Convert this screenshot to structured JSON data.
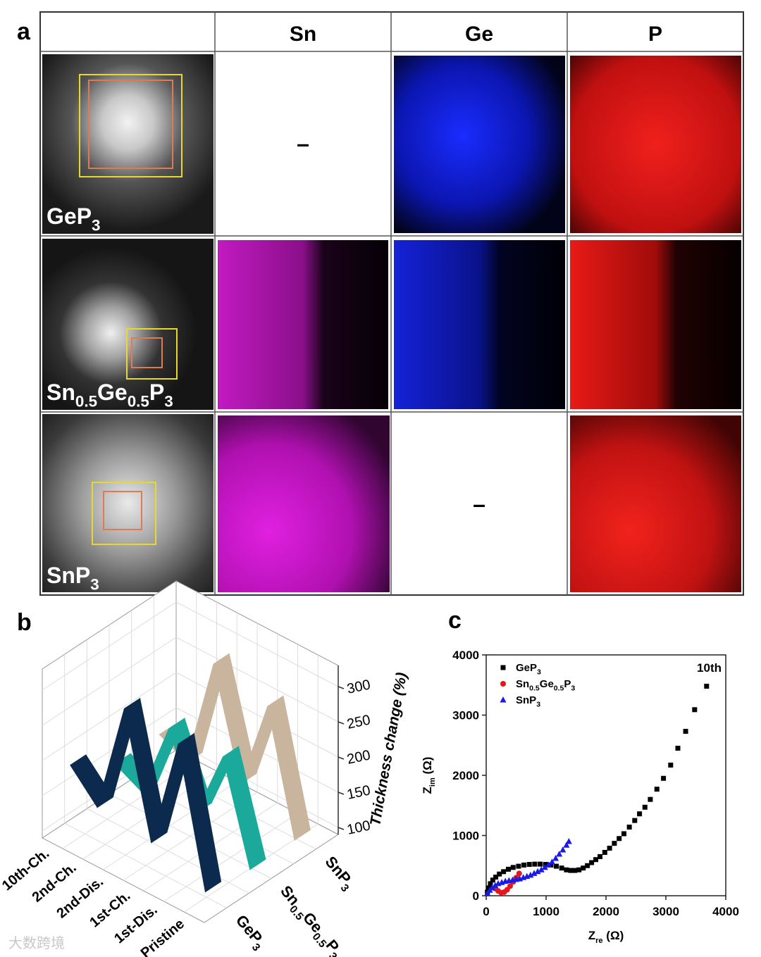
{
  "panel_a": {
    "label": "a",
    "columns": [
      "Sn",
      "Ge",
      "P"
    ],
    "rows": [
      {
        "name": "GeP3",
        "Sn": "–"
      },
      {
        "name": "Sn0.5Ge0.5P3"
      },
      {
        "name": "SnP3",
        "Ge": "–"
      }
    ]
  },
  "chart_data": [
    {
      "label": "b",
      "type": "ribbon3d",
      "categories": [
        "Pristine",
        "1st-Dis.",
        "1st-Ch.",
        "2nd-Dis.",
        "2nd-Ch.",
        "10th-Ch."
      ],
      "series": [
        {
          "name": "GeP3",
          "color": "#0c2a4d",
          "values": [
            110,
            300,
            140,
            310,
            150,
            190
          ]
        },
        {
          "name": "Sn0.5Ge0.5P3",
          "color": "#1aa99b",
          "values": [
            100,
            240,
            140,
            240,
            130,
            150
          ]
        },
        {
          "name": "SnP3",
          "color": "#c9b59e",
          "values": [
            100,
            270,
            140,
            290,
            130,
            150
          ]
        }
      ],
      "z_label": "Thickness change (%)",
      "zlim": [
        90,
        330
      ],
      "zticks": [
        100,
        150,
        200,
        250,
        300
      ],
      "grid": true
    },
    {
      "label": "c",
      "type": "scatter",
      "x_label": "Zre (Ω)",
      "y_label": "Zim (Ω)",
      "annotation": "10th",
      "xlim": [
        0,
        4000
      ],
      "ylim": [
        0,
        4000
      ],
      "xticks": [
        0,
        1000,
        2000,
        3000,
        4000
      ],
      "yticks": [
        0,
        1000,
        2000,
        3000,
        4000
      ],
      "legend": "upper left",
      "series": [
        {
          "name": "GeP3",
          "color": "#000000",
          "marker": "square",
          "x": [
            20,
            40,
            70,
            110,
            160,
            220,
            290,
            370,
            450,
            540,
            630,
            720,
            810,
            900,
            990,
            1080,
            1170,
            1260,
            1340,
            1410,
            1480,
            1550,
            1620,
            1690,
            1760,
            1830,
            1900,
            1980,
            2060,
            2140,
            2220,
            2300,
            2390,
            2480,
            2560,
            2650,
            2740,
            2850,
            2960,
            3080,
            3200,
            3330,
            3480,
            3680
          ],
          "values": [
            60,
            130,
            200,
            260,
            310,
            360,
            400,
            440,
            470,
            490,
            510,
            520,
            525,
            525,
            520,
            510,
            490,
            460,
            430,
            420,
            420,
            430,
            460,
            500,
            550,
            600,
            650,
            720,
            790,
            870,
            950,
            1030,
            1140,
            1250,
            1360,
            1470,
            1600,
            1770,
            1950,
            2170,
            2450,
            2730,
            3090,
            3480
          ]
        },
        {
          "name": "Sn0.5Ge0.5P3",
          "color": "#e3171c",
          "marker": "circle",
          "x": [
            150,
            200,
            250,
            300,
            350,
            400,
            450,
            500,
            550
          ],
          "values": [
            120,
            80,
            50,
            60,
            100,
            160,
            230,
            300,
            370
          ]
        },
        {
          "name": "SnP3",
          "color": "#1a1ae6",
          "marker": "triangle",
          "x": [
            20,
            60,
            100,
            150,
            200,
            260,
            320,
            380,
            440,
            500,
            560,
            620,
            680,
            740,
            800,
            860,
            920,
            980,
            1040,
            1100,
            1160,
            1220,
            1280,
            1340,
            1380
          ],
          "values": [
            40,
            90,
            130,
            170,
            200,
            220,
            240,
            250,
            260,
            270,
            280,
            300,
            320,
            340,
            370,
            400,
            430,
            470,
            510,
            560,
            620,
            690,
            760,
            840,
            900
          ]
        }
      ]
    }
  ],
  "watermark": "大数跨境"
}
